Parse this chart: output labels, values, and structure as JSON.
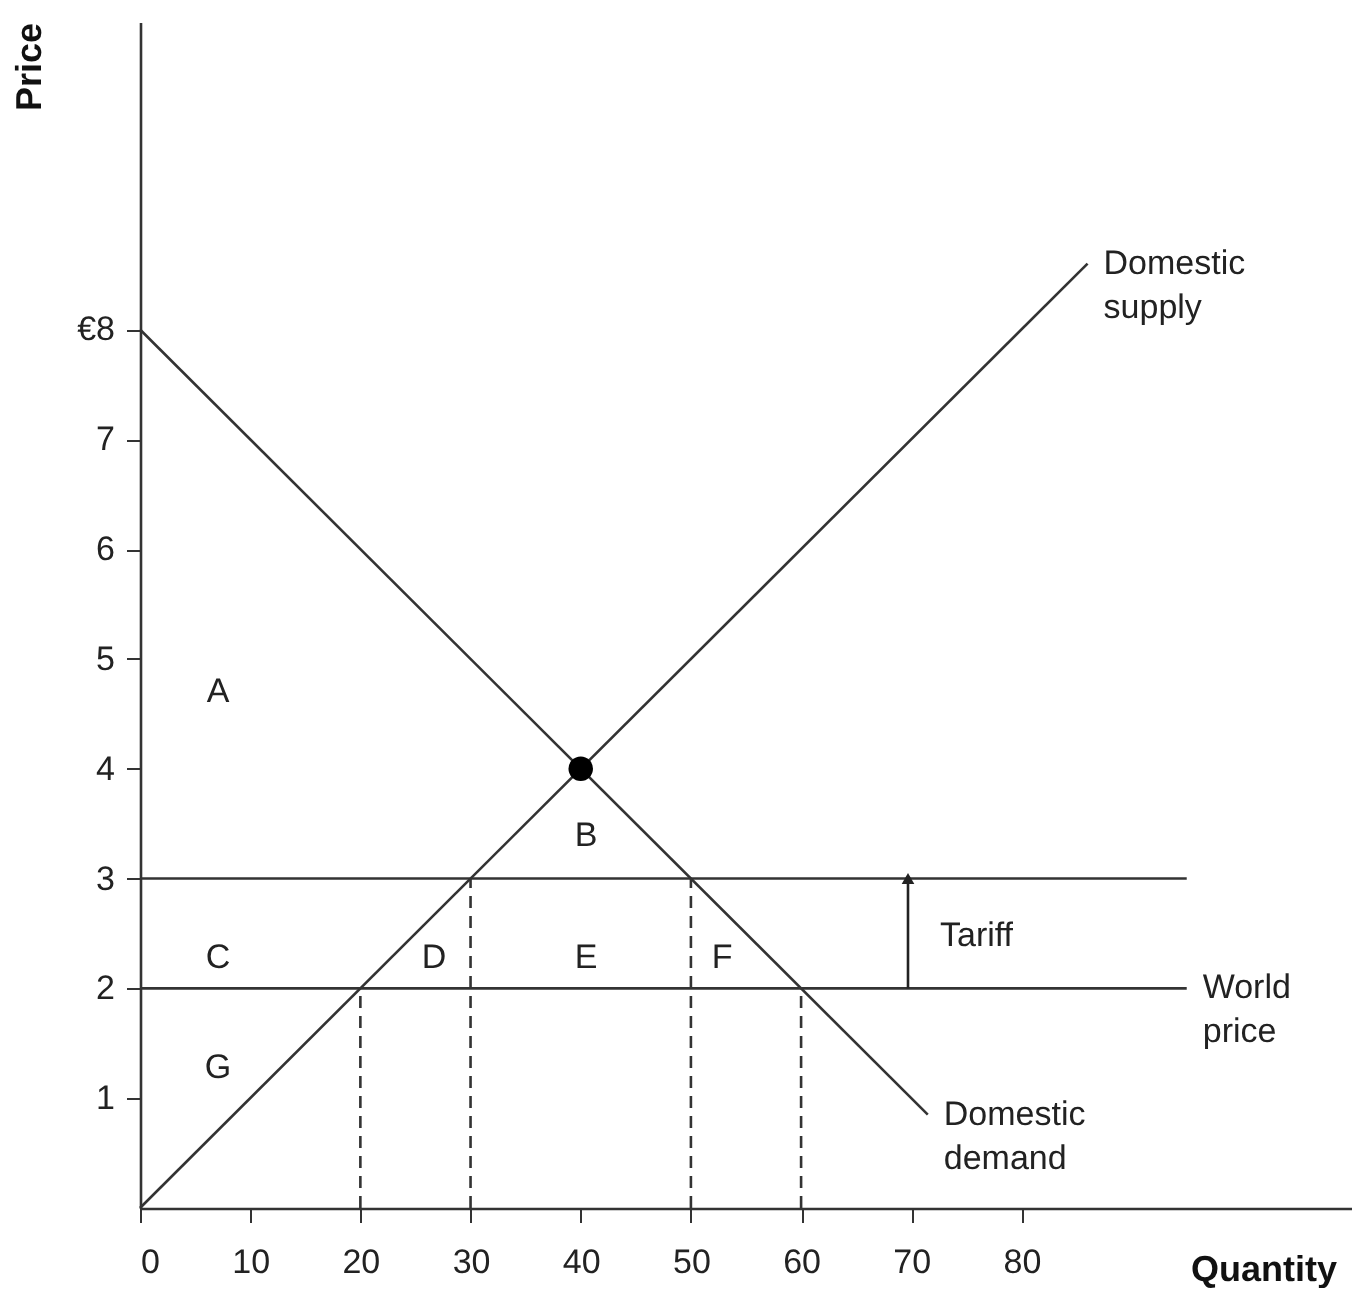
{
  "chart_data": {
    "type": "line",
    "xlabel": "Quantity",
    "ylabel": "Price",
    "xlim": [
      0,
      110
    ],
    "ylim": [
      0,
      10.8
    ],
    "xticks": [
      0,
      10,
      20,
      30,
      40,
      50,
      60,
      70,
      80
    ],
    "yticks": [
      1,
      2,
      3,
      4,
      5,
      6,
      7,
      {
        "value": 8,
        "label": "€8"
      }
    ],
    "grid": false,
    "series": [
      {
        "name": "Domestic supply",
        "color": "#333333",
        "x": [
          0,
          86
        ],
        "values": [
          0,
          8.6
        ]
      },
      {
        "name": "Domestic demand",
        "color": "#333333",
        "x": [
          0,
          71.5
        ],
        "values": [
          8,
          0.85
        ]
      },
      {
        "name": "World price",
        "color": "#333333",
        "x": [
          0,
          95
        ],
        "values": [
          2,
          2
        ]
      },
      {
        "color": "#333333",
        "x": [
          0,
          95
        ],
        "values": [
          3,
          3
        ]
      },
      {
        "color": "#333333",
        "line_style": "dashed",
        "x": [
          20,
          20
        ],
        "values": [
          0,
          2
        ]
      },
      {
        "color": "#333333",
        "line_style": "dashed",
        "x": [
          30,
          30
        ],
        "values": [
          0,
          3
        ]
      },
      {
        "color": "#333333",
        "line_style": "dashed",
        "x": [
          50,
          50
        ],
        "values": [
          0,
          3
        ]
      },
      {
        "color": "#333333",
        "line_style": "dashed",
        "x": [
          60,
          60
        ],
        "values": [
          0,
          2
        ]
      },
      {
        "type": "scatter",
        "marker": "circle",
        "color": "#000000",
        "x": [
          40
        ],
        "values": [
          4
        ]
      }
    ],
    "annotations": [
      "A",
      "B",
      "C",
      "D",
      "E",
      "F",
      "G",
      "Tariff"
    ]
  }
}
